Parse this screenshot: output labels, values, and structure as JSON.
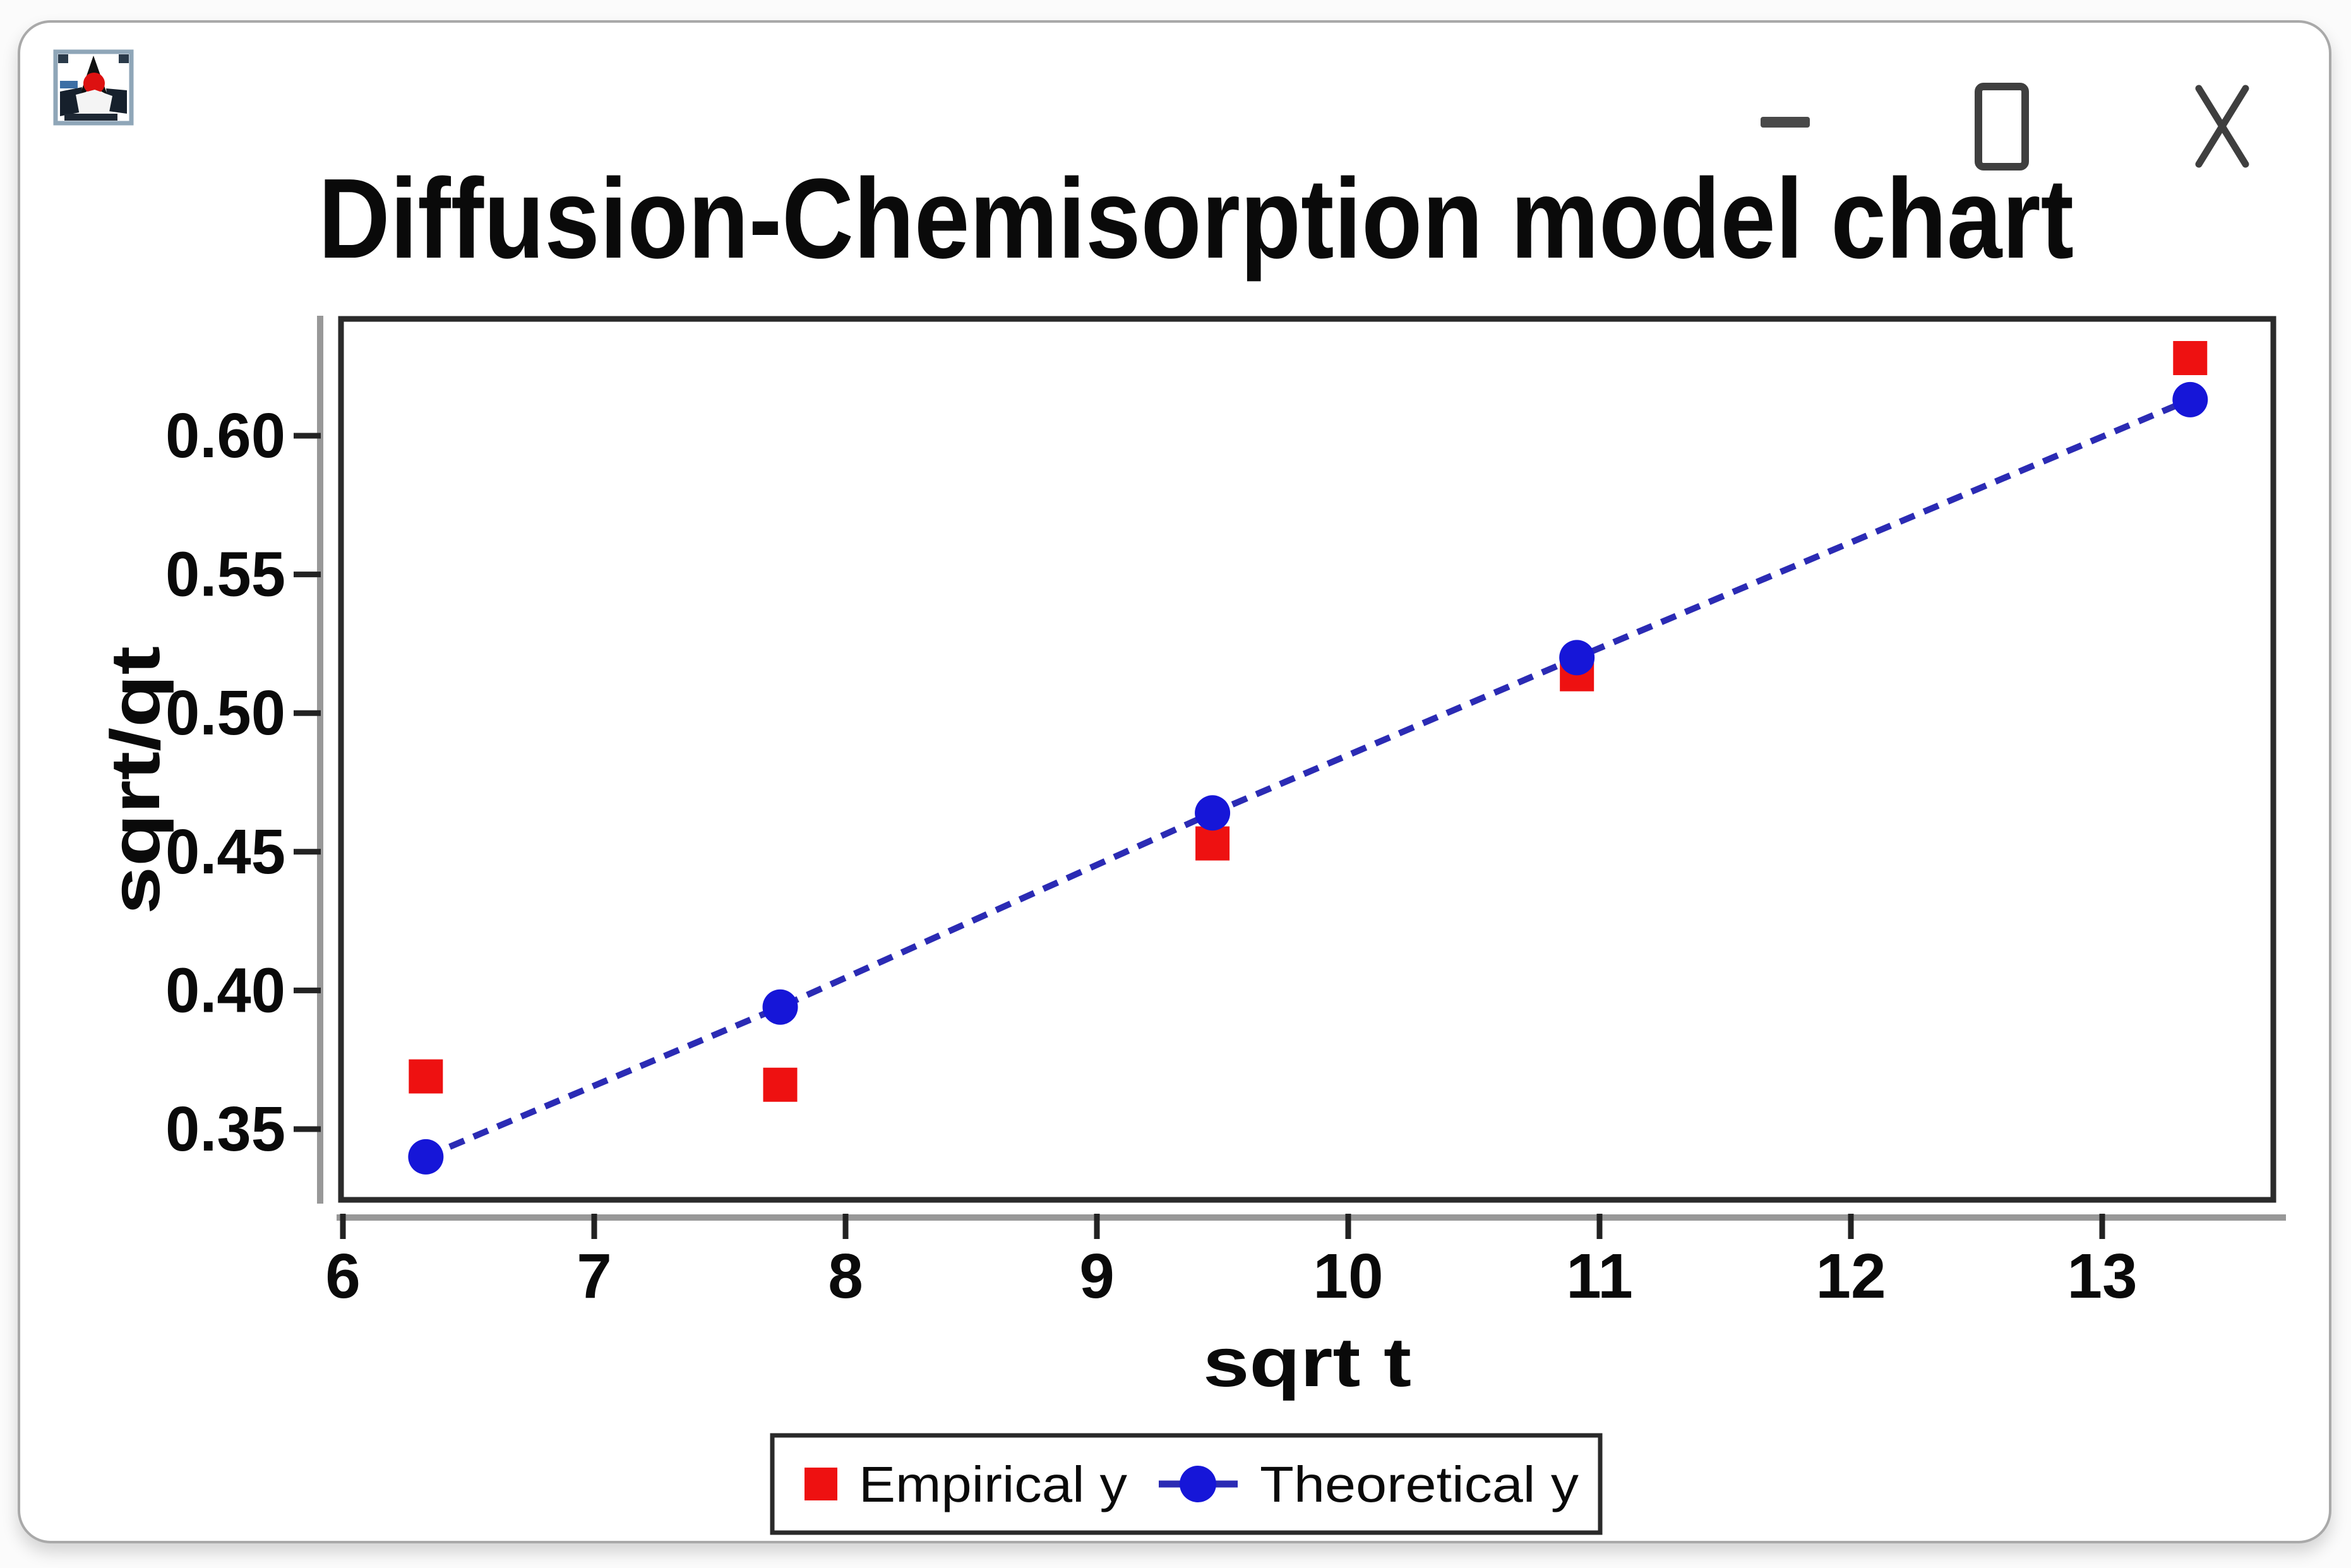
{
  "window": {
    "icon_name": "matplotlib-figure-icon",
    "controls": {
      "minimize_label": "minimize",
      "maximize_label": "maximize",
      "close_label": "close"
    }
  },
  "chart_data": {
    "type": "scatter",
    "title": "Diffusion-Chemisorption model chart",
    "xlabel": "sqrt t",
    "ylabel": "sqrt/qt",
    "x_ticks": [
      6,
      7,
      8,
      9,
      10,
      11,
      12,
      13
    ],
    "y_ticks": [
      0.35,
      0.4,
      0.45,
      0.5,
      0.55,
      0.6
    ],
    "xlim": [
      6.0,
      13.68
    ],
    "ylim": [
      0.324,
      0.642
    ],
    "grid": false,
    "legend_position": "bottom-center",
    "x": [
      6.33,
      7.74,
      9.46,
      10.91,
      13.35
    ],
    "series": [
      {
        "name": "Empirical y",
        "type": "scatter",
        "marker": "square",
        "color": "#ee1111",
        "values": [
          0.369,
          0.366,
          0.453,
          0.514,
          0.628
        ]
      },
      {
        "name": "Theoretical y",
        "type": "line+marker",
        "marker": "circle",
        "line_style": "dashed",
        "color": "#1616d8",
        "line_color": "#2b2bb4",
        "values": [
          0.34,
          0.394,
          0.464,
          0.52,
          0.613
        ]
      }
    ]
  },
  "colors": {
    "empirical": "#ee1111",
    "theoretical_marker": "#1616d8",
    "theoretical_line": "#2b2bb4",
    "axis_box": "#2b2b2b",
    "axis_gray": "#989898",
    "text": "#0a0a0a",
    "window_border": "#a9a9a9",
    "control_glyph": "#3f3f3f"
  }
}
